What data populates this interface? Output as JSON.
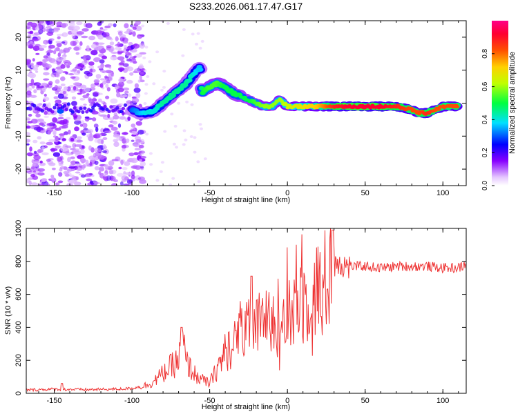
{
  "chart_data": [
    {
      "type": "heatmap",
      "title": "S233.2026.061.17.47.G17",
      "xlabel": "Height of straight line (km)",
      "ylabel": "Frequency (Hz)",
      "xlim": [
        -168,
        115
      ],
      "ylim": [
        -25,
        25
      ],
      "xticks": [
        -150,
        -100,
        -50,
        0,
        50,
        100
      ],
      "yticks": [
        -20,
        -10,
        0,
        10,
        20
      ],
      "ridge": {
        "x": [
          -100,
          -95,
          -90,
          -85,
          -80,
          -75,
          -70,
          -65,
          -60,
          -56,
          -55,
          -50,
          -45,
          -40,
          -35,
          -30,
          -25,
          -20,
          -15,
          -10,
          -5,
          0,
          10,
          20,
          30,
          40,
          50,
          60,
          70,
          80,
          85,
          90,
          95,
          100,
          110
        ],
        "freq": [
          -2,
          -3,
          -3,
          -2,
          0,
          2,
          4,
          6,
          9,
          11,
          3,
          5,
          6,
          5,
          3,
          2,
          1,
          0,
          -1,
          -1,
          1,
          -1,
          -1,
          -1,
          -1,
          -1,
          -1,
          -1,
          -1,
          -2,
          -3,
          -3,
          -2,
          -1,
          -1
        ],
        "amplitude": [
          0.3,
          0.35,
          0.4,
          0.4,
          0.45,
          0.45,
          0.45,
          0.45,
          0.4,
          0.35,
          0.5,
          0.55,
          0.55,
          0.5,
          0.5,
          0.5,
          0.5,
          0.55,
          0.6,
          0.6,
          0.6,
          0.65,
          0.7,
          0.75,
          0.9,
          0.95,
          0.95,
          0.95,
          0.9,
          0.85,
          0.85,
          0.9,
          0.85,
          0.85,
          0.85
        ]
      },
      "colorbar": {
        "label": "Normalized spectral amplitude",
        "range": [
          0,
          1
        ],
        "ticks": [
          "0.0",
          "0.2",
          "0.4",
          "0.6",
          "0.8"
        ]
      }
    },
    {
      "type": "line",
      "xlabel": "Height of straight line (km)",
      "ylabel": "SNR (10 * v/v)",
      "xlim": [
        -168,
        115
      ],
      "ylim": [
        0,
        1000
      ],
      "xticks": [
        -150,
        -100,
        -50,
        0,
        50,
        100
      ],
      "yticks": [
        0,
        200,
        400,
        600,
        800,
        1000
      ],
      "series": [
        {
          "name": "SNR",
          "color": "#ee3333",
          "x": [
            -168,
            -150,
            -130,
            -110,
            -100,
            -90,
            -85,
            -80,
            -75,
            -70,
            -67,
            -65,
            -62,
            -60,
            -55,
            -50,
            -45,
            -40,
            -35,
            -30,
            -25,
            -20,
            -15,
            -10,
            -5,
            0,
            5,
            10,
            15,
            20,
            25,
            28,
            30,
            32,
            35,
            40,
            50,
            60,
            70,
            80,
            90,
            100,
            110,
            115
          ],
          "y": [
            20,
            25,
            22,
            25,
            30,
            50,
            80,
            120,
            160,
            200,
            300,
            180,
            150,
            120,
            80,
            60,
            150,
            250,
            300,
            350,
            380,
            400,
            430,
            460,
            430,
            450,
            500,
            560,
            610,
            640,
            680,
            720,
            760,
            820,
            780,
            770,
            770,
            760,
            770,
            770,
            770,
            760,
            760,
            780
          ]
        }
      ],
      "annotations": [
        {
          "x": -145,
          "y": 60
        },
        {
          "x": -68,
          "y": 400
        },
        {
          "x": -23,
          "y": 710
        },
        {
          "x": 29,
          "y": 990
        }
      ]
    }
  ]
}
